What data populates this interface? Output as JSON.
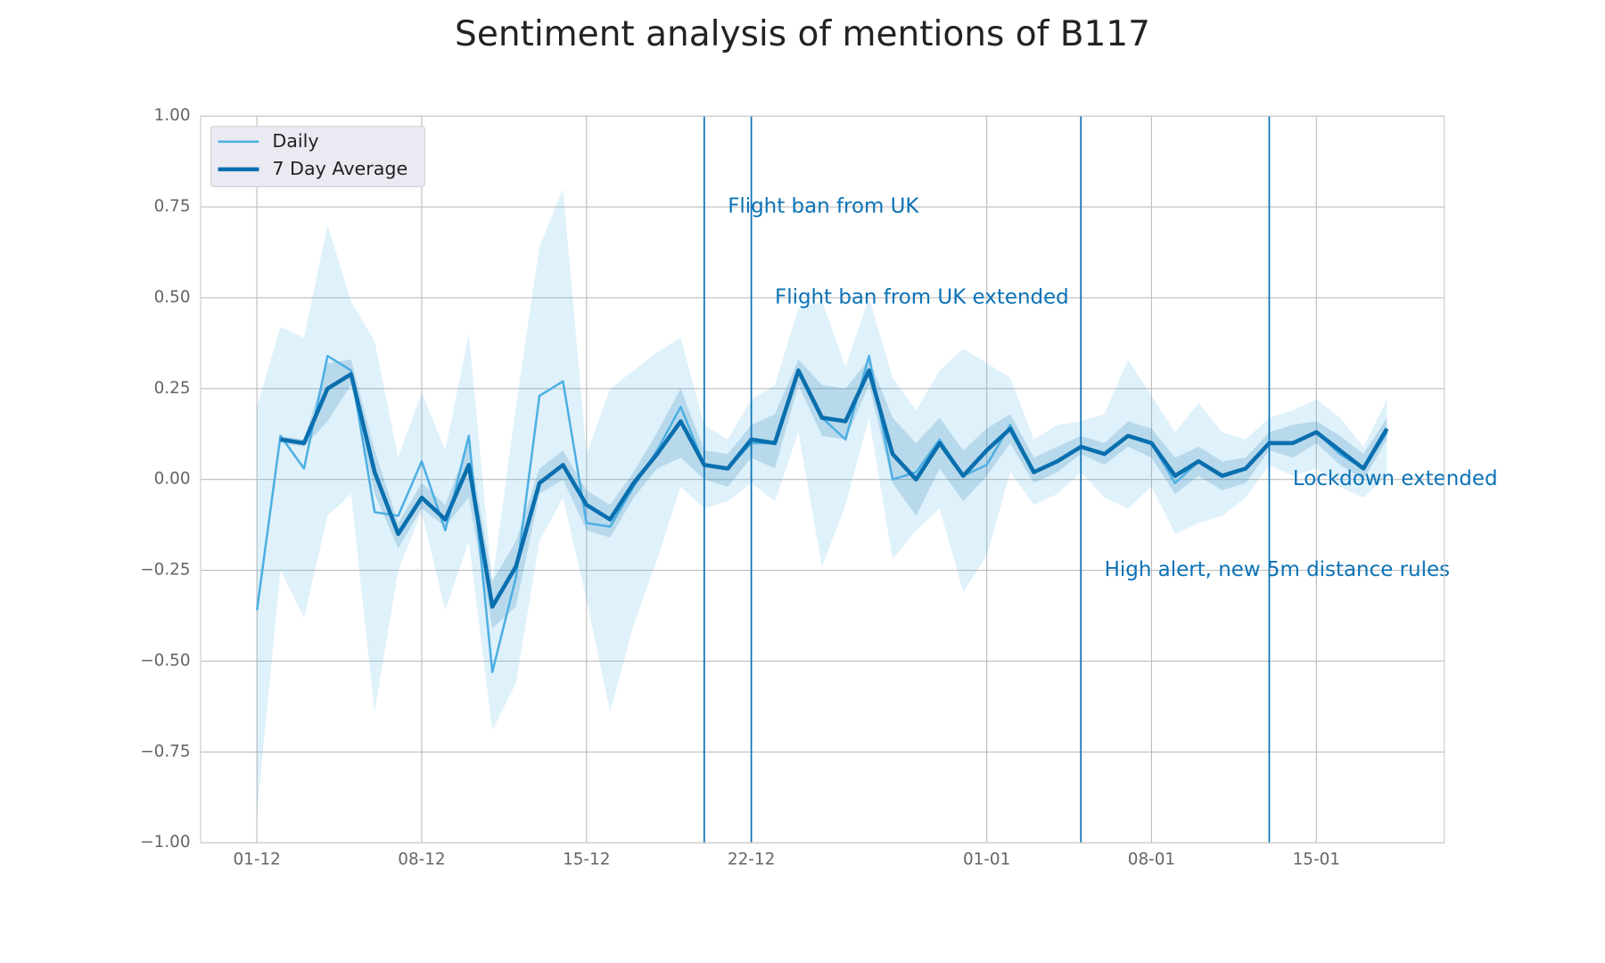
{
  "chart_data": {
    "type": "line",
    "title": "Sentiment analysis of mentions of B117",
    "x": [
      "01-12",
      "02-12",
      "03-12",
      "04-12",
      "05-12",
      "06-12",
      "07-12",
      "08-12",
      "09-12",
      "10-12",
      "11-12",
      "12-12",
      "13-12",
      "14-12",
      "15-12",
      "16-12",
      "17-12",
      "18-12",
      "19-12",
      "20-12",
      "21-12",
      "22-12",
      "23-12",
      "24-12",
      "25-12",
      "26-12",
      "27-12",
      "28-12",
      "29-12",
      "30-12",
      "31-12",
      "01-01",
      "02-01",
      "03-01",
      "04-01",
      "05-01",
      "06-01",
      "07-01",
      "08-01",
      "09-01",
      "10-01",
      "11-01",
      "12-01",
      "13-01",
      "14-01",
      "15-01",
      "16-01",
      "17-01",
      "18-01"
    ],
    "xticks": [
      "01-12",
      "08-12",
      "15-12",
      "22-12",
      "01-01",
      "08-01",
      "15-01"
    ],
    "ylim": [
      -1,
      1
    ],
    "yticks": [
      {
        "value": -1,
        "label": "−1.00"
      },
      {
        "value": -0.75,
        "label": "−0.75"
      },
      {
        "value": -0.5,
        "label": "−0.50"
      },
      {
        "value": -0.25,
        "label": "−0.25"
      },
      {
        "value": 0,
        "label": "0.00"
      },
      {
        "value": 0.25,
        "label": "0.25"
      },
      {
        "value": 0.5,
        "label": "0.50"
      },
      {
        "value": 0.75,
        "label": "0.75"
      },
      {
        "value": 1,
        "label": "1.00"
      }
    ],
    "grid": true,
    "legend": "upper left",
    "series": [
      {
        "name": "Daily",
        "color": "#4dafe3",
        "width": 2.2,
        "values": [
          -0.36,
          0.12,
          0.03,
          0.34,
          0.3,
          -0.09,
          -0.1,
          0.05,
          -0.14,
          0.12,
          -0.53,
          -0.27,
          0.23,
          0.27,
          -0.12,
          -0.13,
          -0.02,
          0.08,
          0.2,
          0.04,
          0.03,
          0.1,
          0.1,
          0.3,
          0.17,
          0.11,
          0.34,
          0.0,
          0.02,
          0.11,
          0.01,
          0.04,
          0.15,
          0.02,
          0.05,
          0.09,
          0.07,
          0.12,
          0.1,
          -0.01,
          0.05,
          0.01,
          0.03,
          0.1,
          0.1,
          0.13,
          0.07,
          0.03,
          0.13
        ],
        "lower": [
          -0.92,
          -0.25,
          -0.38,
          -0.1,
          -0.04,
          -0.64,
          -0.25,
          -0.09,
          -0.36,
          -0.17,
          -0.69,
          -0.56,
          -0.17,
          -0.05,
          -0.33,
          -0.64,
          -0.4,
          -0.22,
          -0.02,
          -0.08,
          -0.06,
          -0.01,
          -0.06,
          0.13,
          -0.24,
          -0.07,
          0.17,
          -0.22,
          -0.14,
          -0.08,
          -0.31,
          -0.21,
          0.02,
          -0.07,
          -0.04,
          0.02,
          -0.05,
          -0.08,
          -0.02,
          -0.15,
          -0.12,
          -0.1,
          -0.05,
          0.04,
          0.01,
          0.03,
          -0.02,
          -0.05,
          0.01
        ],
        "upper": [
          0.2,
          0.42,
          0.39,
          0.7,
          0.49,
          0.38,
          0.06,
          0.24,
          0.08,
          0.4,
          -0.28,
          0.2,
          0.64,
          0.8,
          0.07,
          0.25,
          0.3,
          0.35,
          0.39,
          0.15,
          0.11,
          0.22,
          0.26,
          0.47,
          0.49,
          0.31,
          0.5,
          0.28,
          0.19,
          0.3,
          0.36,
          0.32,
          0.28,
          0.11,
          0.15,
          0.16,
          0.18,
          0.33,
          0.23,
          0.13,
          0.21,
          0.13,
          0.11,
          0.17,
          0.19,
          0.22,
          0.17,
          0.09,
          0.22
        ]
      },
      {
        "name": "7 Day Average",
        "color": "#0a6fae",
        "width": 4,
        "values": [
          null,
          0.11,
          0.1,
          0.25,
          0.29,
          0.02,
          -0.15,
          -0.05,
          -0.11,
          0.04,
          -0.35,
          -0.24,
          -0.01,
          0.04,
          -0.07,
          -0.11,
          -0.01,
          0.07,
          0.16,
          0.04,
          0.03,
          0.11,
          0.1,
          0.3,
          0.17,
          0.16,
          0.3,
          0.07,
          0.0,
          0.1,
          0.01,
          0.08,
          0.14,
          0.02,
          0.05,
          0.09,
          0.07,
          0.12,
          0.1,
          0.01,
          0.05,
          0.01,
          0.03,
          0.1,
          0.1,
          0.13,
          0.08,
          0.03,
          0.14
        ],
        "lower": [
          null,
          0.1,
          0.09,
          0.16,
          0.26,
          -0.04,
          -0.19,
          -0.08,
          -0.13,
          -0.05,
          -0.41,
          -0.35,
          -0.04,
          0.0,
          -0.14,
          -0.16,
          -0.05,
          0.03,
          0.06,
          0.0,
          -0.02,
          0.06,
          0.03,
          0.26,
          0.12,
          0.11,
          0.26,
          -0.01,
          -0.1,
          0.03,
          -0.06,
          0.01,
          0.1,
          -0.01,
          0.02,
          0.07,
          0.04,
          0.09,
          0.06,
          -0.04,
          0.01,
          -0.03,
          -0.01,
          0.08,
          0.06,
          0.1,
          0.04,
          0.0,
          0.11
        ],
        "upper": [
          null,
          0.12,
          0.11,
          0.32,
          0.33,
          0.08,
          -0.12,
          -0.01,
          -0.07,
          0.1,
          -0.28,
          -0.17,
          0.03,
          0.08,
          -0.03,
          -0.07,
          0.02,
          0.13,
          0.25,
          0.08,
          0.07,
          0.15,
          0.18,
          0.33,
          0.26,
          0.25,
          0.33,
          0.17,
          0.1,
          0.17,
          0.08,
          0.14,
          0.18,
          0.06,
          0.09,
          0.12,
          0.1,
          0.16,
          0.14,
          0.06,
          0.09,
          0.05,
          0.06,
          0.13,
          0.15,
          0.16,
          0.12,
          0.07,
          0.17
        ]
      }
    ],
    "annotations": [
      {
        "x": "20-12",
        "text": "Flight ban from UK",
        "y": 0.75
      },
      {
        "x": "22-12",
        "text": "Flight ban from UK extended",
        "y": 0.5
      },
      {
        "x": "05-01",
        "text": "High alert, new 5m distance rules",
        "y": -0.25
      },
      {
        "x": "13-01",
        "text": "Lockdown extended",
        "y": 0.0
      }
    ]
  }
}
